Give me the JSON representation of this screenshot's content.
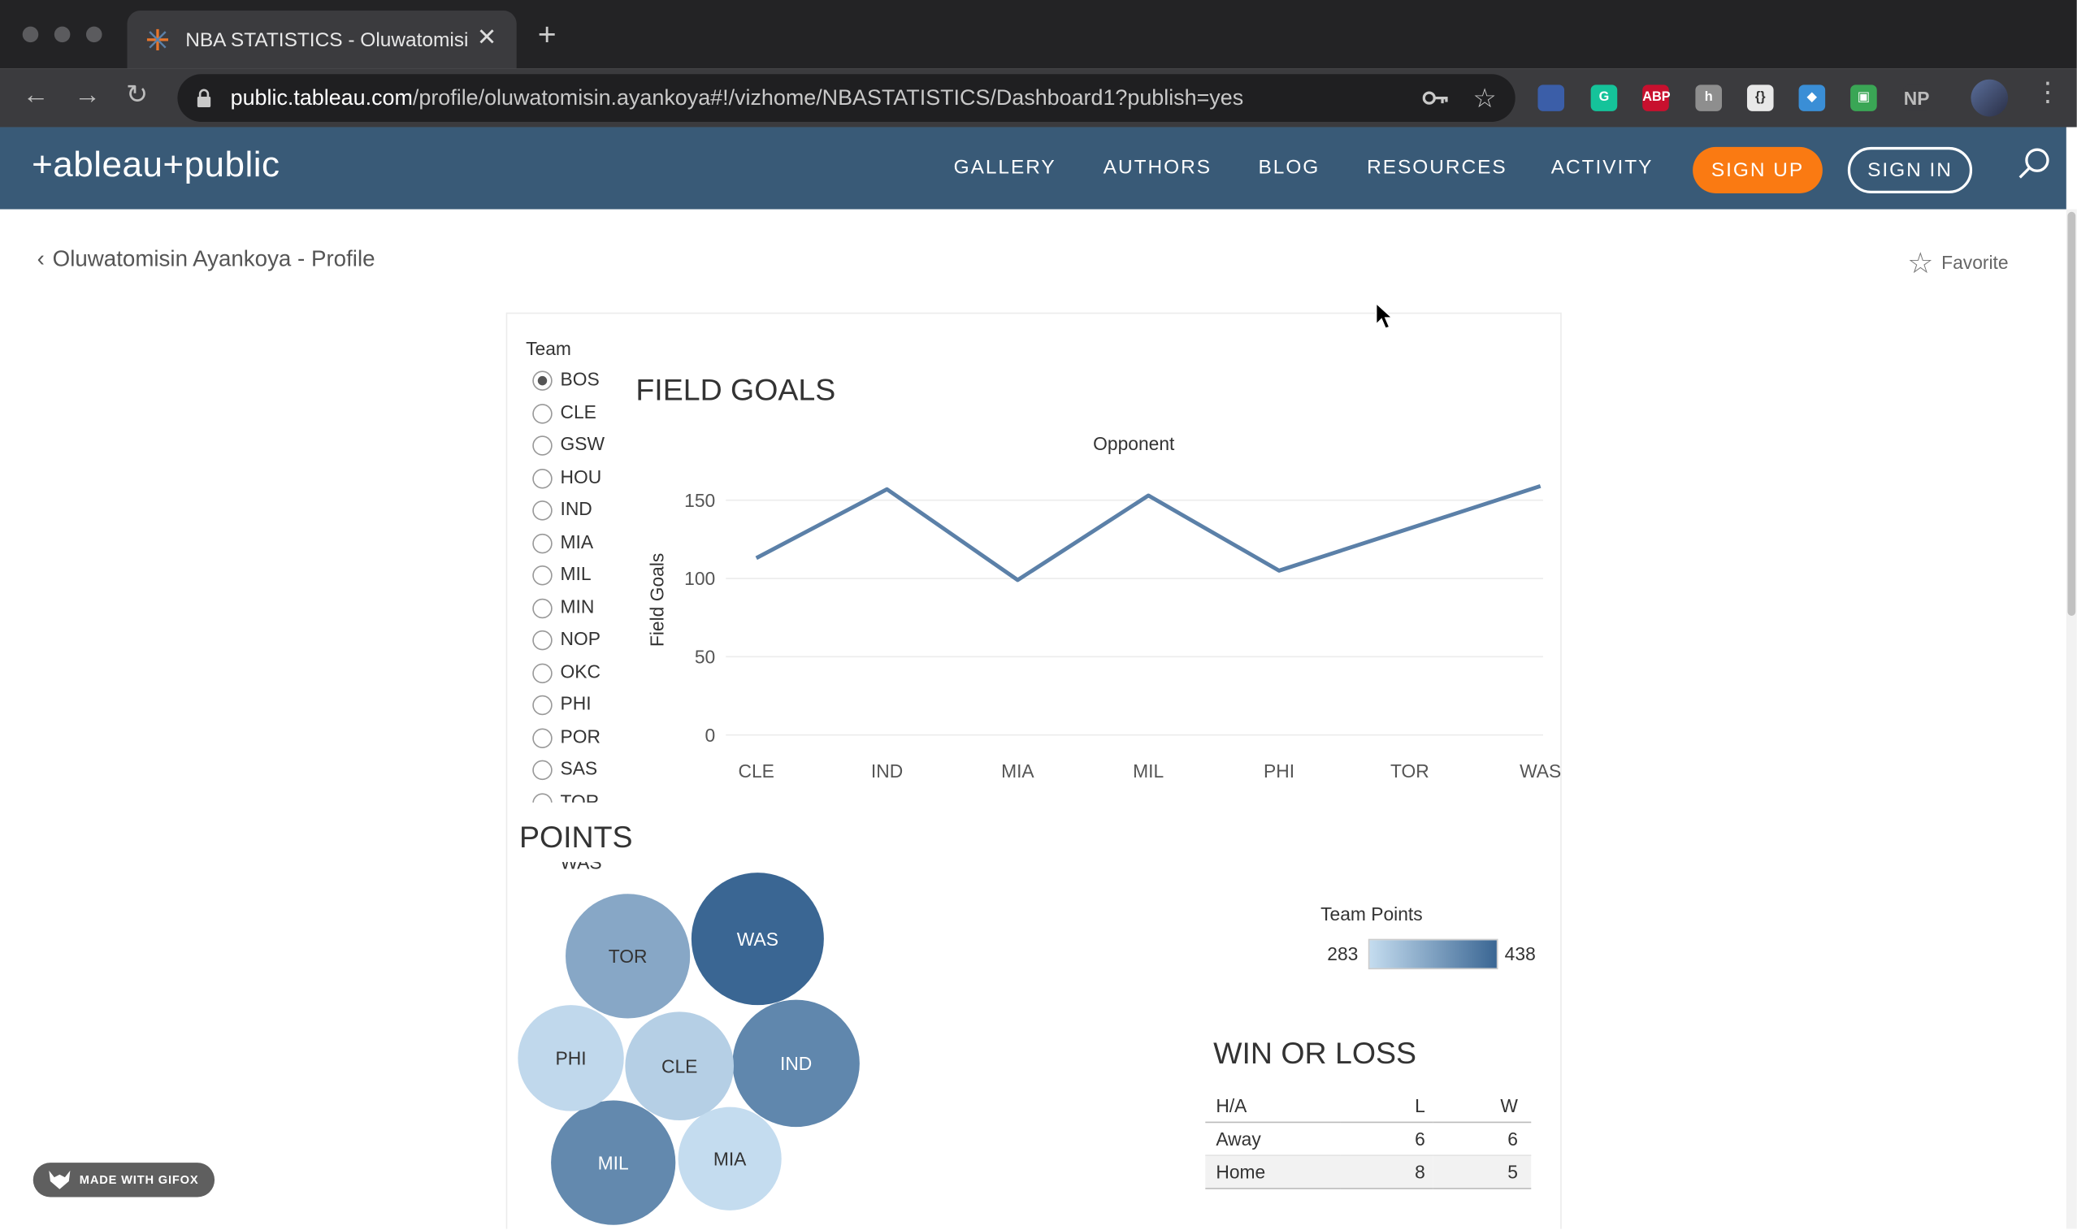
{
  "browser": {
    "tab_title": "NBA STATISTICS - Oluwatomisin",
    "new_tab": "+",
    "tab_close": "✕",
    "url_host": "public.tableau.com",
    "url_path": "/profile/oluwatomisin.ayankoya#!/vizhome/NBASTATISTICS/Dashboard1?publish=yes",
    "extensions": [
      {
        "name": "tab-manager-icon",
        "color": "#3b5ea8",
        "label": ""
      },
      {
        "name": "grammarly-icon",
        "color": "#15c39a",
        "label": "G"
      },
      {
        "name": "adblock-plus-icon",
        "color": "#c8102e",
        "label": "ABP"
      },
      {
        "name": "tableau-ext-icon",
        "color": "#8e8e8e",
        "label": "h"
      },
      {
        "name": "json-viewer-icon",
        "color": "#e8e8e8",
        "label": "{}"
      },
      {
        "name": "web-ext-icon",
        "color": "#3a8ed6",
        "label": "◆"
      },
      {
        "name": "green-ext-icon",
        "color": "#3aa655",
        "label": "▣"
      },
      {
        "name": "np-ext-icon",
        "color": "#3b3b3e",
        "label": "NP"
      }
    ]
  },
  "header": {
    "logo_text": "+ableau+public",
    "nav": [
      "GALLERY",
      "AUTHORS",
      "BLOG",
      "RESOURCES",
      "ACTIVITY"
    ],
    "signup": "SIGN UP",
    "signin": "SIGN IN"
  },
  "page": {
    "back_link": "Oluwatomisin Ayankoya - Profile",
    "favorite": "Favorite"
  },
  "team_filter": {
    "label": "Team",
    "selected": "BOS",
    "options": [
      "BOS",
      "CLE",
      "GSW",
      "HOU",
      "IND",
      "MIA",
      "MIL",
      "MIN",
      "NOP",
      "OKC",
      "PHI",
      "POR",
      "SAS",
      "TOR",
      "WAS"
    ]
  },
  "field_goals": {
    "title": "FIELD GOALS",
    "chart_data": {
      "type": "line",
      "title": "FIELD GOALS",
      "top_axis_label": "Opponent",
      "ylabel": "Field Goals",
      "categories": [
        "CLE",
        "IND",
        "MIA",
        "MIL",
        "PHI",
        "TOR",
        "WAS"
      ],
      "values": [
        113,
        157,
        99,
        153,
        105,
        132,
        159
      ],
      "yticks": [
        0,
        50,
        100,
        150
      ],
      "ylim": [
        0,
        165
      ],
      "grid": true,
      "color": "#5b80a8"
    }
  },
  "points": {
    "title": "POINTS",
    "legend_title": "Team Points",
    "legend_min": "283",
    "legend_max": "438",
    "chart_data": {
      "type": "bubble",
      "title": "POINTS",
      "color_legend": "Team Points",
      "color_range": [
        283,
        438
      ],
      "bubbles": [
        {
          "label": "WAS",
          "value": 438
        },
        {
          "label": "IND",
          "value": 395
        },
        {
          "label": "MIL",
          "value": 392
        },
        {
          "label": "TOR",
          "value": 352
        },
        {
          "label": "CLE",
          "value": 300
        },
        {
          "label": "PHI",
          "value": 288
        },
        {
          "label": "MIA",
          "value": 283
        }
      ]
    }
  },
  "win_loss": {
    "title": "WIN OR LOSS",
    "headers": [
      "H/A",
      "L",
      "W"
    ],
    "rows": [
      {
        "ha": "Away",
        "l": "6",
        "w": "6"
      },
      {
        "ha": "Home",
        "l": "8",
        "w": "5"
      }
    ]
  },
  "overlay": {
    "gifox": "MADE WITH GIFOX"
  }
}
